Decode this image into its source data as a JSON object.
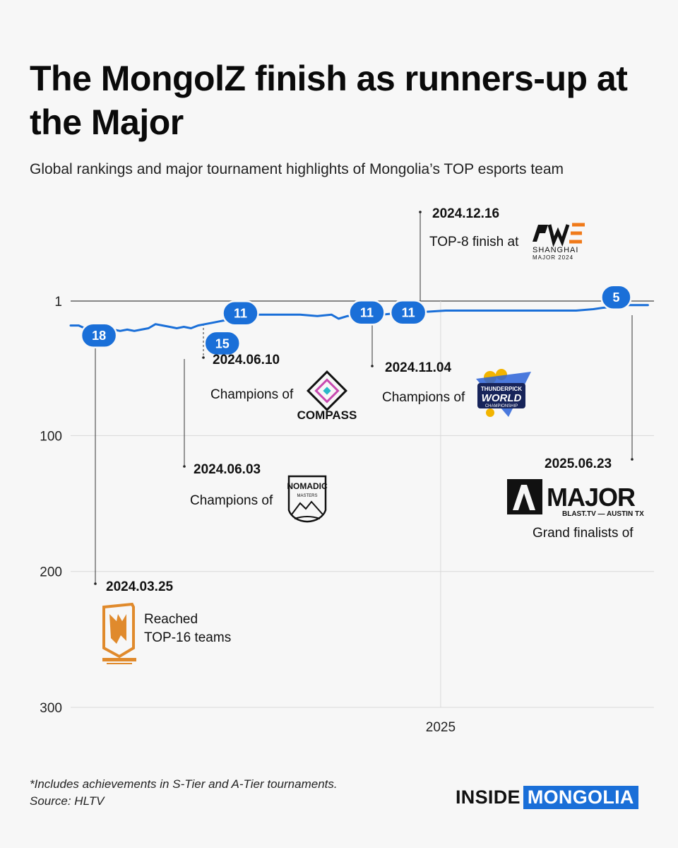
{
  "title": "The MongolZ finish as runners-up at the Major",
  "subtitle": "Global rankings and major tournament highlights of Mongolia’s TOP esports team",
  "chart_data": {
    "type": "line",
    "title": "The MongolZ finish as runners-up at the Major",
    "subtitle": "Global rankings and major tournament highlights of Mongolia’s TOP esports team",
    "xlabel": "",
    "ylabel": "",
    "x_range": [
      "2024-01-01",
      "2025-07-31"
    ],
    "y_range": [
      1,
      300
    ],
    "y_inverted": true,
    "y_ticks": [
      1,
      100,
      200,
      300
    ],
    "x_ticks": [
      {
        "date": "2025-01-01",
        "label": "2025"
      }
    ],
    "grid": true,
    "line_color": "#1a6fd8",
    "series": [
      {
        "x": [
          "2024-01-01",
          "2024-01-09",
          "2024-01-15",
          "2024-01-29",
          "2024-02-12",
          "2024-02-19",
          "2024-02-26",
          "2024-03-04",
          "2024-03-11",
          "2024-03-18",
          "2024-03-25",
          "2024-04-01",
          "2024-04-08",
          "2024-04-15",
          "2024-04-22",
          "2024-04-29",
          "2024-05-06",
          "2024-05-13",
          "2024-05-20",
          "2024-05-27",
          "2024-06-03",
          "2024-06-10",
          "2024-06-17",
          "2024-07-01",
          "2024-07-15",
          "2024-08-01",
          "2024-08-15",
          "2024-09-01",
          "2024-09-15",
          "2024-09-22",
          "2024-10-01",
          "2024-10-15",
          "2024-11-04",
          "2024-11-18",
          "2024-12-02",
          "2024-12-16",
          "2025-01-06",
          "2025-02-01",
          "2025-03-01",
          "2025-04-01",
          "2025-05-01",
          "2025-05-15",
          "2025-06-01",
          "2025-06-10",
          "2025-06-23",
          "2025-07-01",
          "2025-07-25"
        ],
        "y": [
          19,
          19,
          21,
          21,
          22,
          23,
          22,
          23,
          22,
          21,
          18,
          19,
          20,
          21,
          20,
          21,
          19,
          18,
          17,
          16,
          15,
          11,
          12,
          11,
          11,
          11,
          11,
          12,
          11,
          14,
          12,
          11,
          11,
          10,
          10,
          9,
          8,
          8,
          8,
          8,
          8,
          8,
          7,
          6,
          5,
          4,
          4
        ]
      }
    ],
    "badges": [
      {
        "x": "2024-01-29",
        "y": 18,
        "label": "18"
      },
      {
        "x": "2024-06-17",
        "y": 11,
        "label": "11"
      },
      {
        "x": "2024-05-30",
        "y": 15,
        "label": "15"
      },
      {
        "x": "2024-10-20",
        "y": 11,
        "label": "11"
      },
      {
        "x": "2024-11-30",
        "y": 11,
        "label": "11"
      },
      {
        "x": "2025-06-25",
        "y": 5,
        "label": "5"
      }
    ],
    "annotations": [
      {
        "date_label": "2024.03.25",
        "lines": [
          "Reached",
          "TOP-16 teams"
        ],
        "logo": "major-copenhagen-logo",
        "logo_color": "#e08a2c"
      },
      {
        "date_label": "2024.06.03",
        "lines": [
          "Champions of"
        ],
        "logo": "nomadic-masters-logo"
      },
      {
        "date_label": "2024.06.10",
        "lines": [
          "Champions of"
        ],
        "logo": "compass-logo",
        "logo_text": "COMPASS"
      },
      {
        "date_label": "2024.11.04",
        "lines": [
          "Champions of"
        ],
        "logo": "thunderpick-world-championship-logo",
        "logo_text": [
          "THUNDERPICK",
          "WORLD",
          "CHAMPIONSHIP"
        ]
      },
      {
        "date_label": "2024.12.16",
        "lines": [
          "TOP-8 finish at"
        ],
        "logo": "perfect-world-shanghai-major-logo",
        "logo_text": [
          "SHANGHAI",
          "MAJOR 2024"
        ]
      },
      {
        "date_label": "2025.06.23",
        "lines": [
          "Grand finalists of"
        ],
        "logo": "blasttv-austin-major-logo",
        "logo_text": [
          "MAJOR",
          "BLAST.TV — AUSTIN TX"
        ]
      }
    ]
  },
  "footnote": "*Includes achievements in S-Tier and A-Tier tournaments.",
  "source": "Source: HLTV",
  "brand": {
    "part1": "INSIDE",
    "part2": "MONGOLIA",
    "accent": "#1a6fd8"
  }
}
